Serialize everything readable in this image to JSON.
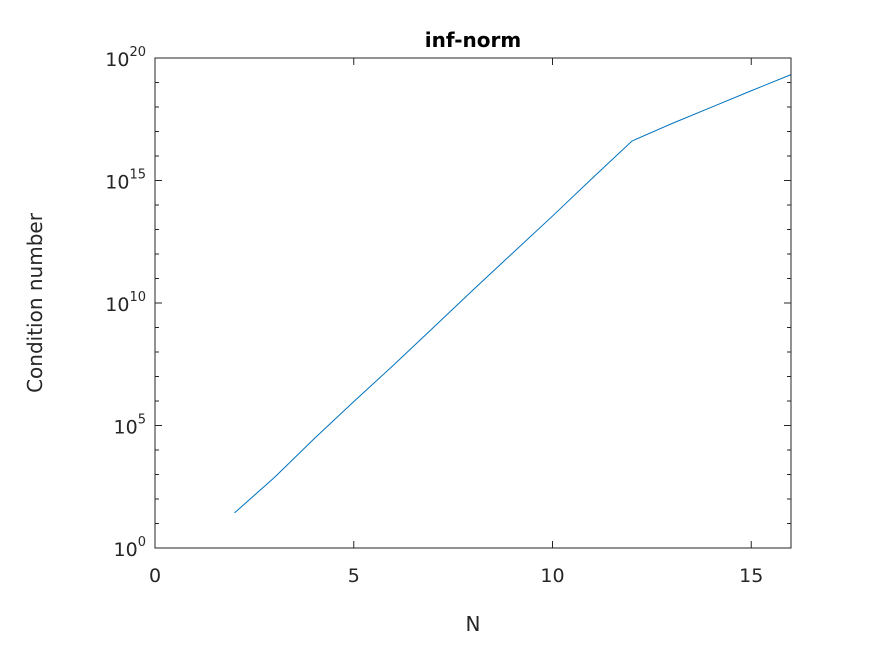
{
  "chart_data": {
    "type": "line",
    "title": "inf-norm",
    "xlabel": "N",
    "ylabel": "Condition number",
    "xlim": [
      0,
      16
    ],
    "ylim_log10": [
      0,
      20
    ],
    "y_scale": "log",
    "grid": false,
    "x_ticks": [
      {
        "value": 0,
        "label": "0"
      },
      {
        "value": 5,
        "label": "5"
      },
      {
        "value": 10,
        "label": "10"
      },
      {
        "value": 15,
        "label": "15"
      }
    ],
    "y_ticks": [
      {
        "value": 1,
        "base": "10",
        "exp": "0"
      },
      {
        "value": 100000,
        "base": "10",
        "exp": "5"
      },
      {
        "value": 10000000000,
        "base": "10",
        "exp": "10"
      },
      {
        "value": 1000000000000000.0,
        "base": "10",
        "exp": "15"
      },
      {
        "value": 1e+20,
        "base": "10",
        "exp": "20"
      }
    ],
    "series": [
      {
        "color": "#0072bd",
        "x": [
          2,
          3,
          4,
          5,
          6,
          7,
          8,
          9,
          10,
          11,
          12,
          13,
          14,
          15,
          16
        ],
        "y": [
          27,
          748,
          28375,
          943656,
          29070279,
          985194889,
          33872791095,
          1099651994582,
          35357439251992,
          1233702161078110,
          4.1e+16,
          2.1e+17,
          9.8e+17,
          4.6e+18,
          2.1e+19
        ]
      }
    ]
  }
}
